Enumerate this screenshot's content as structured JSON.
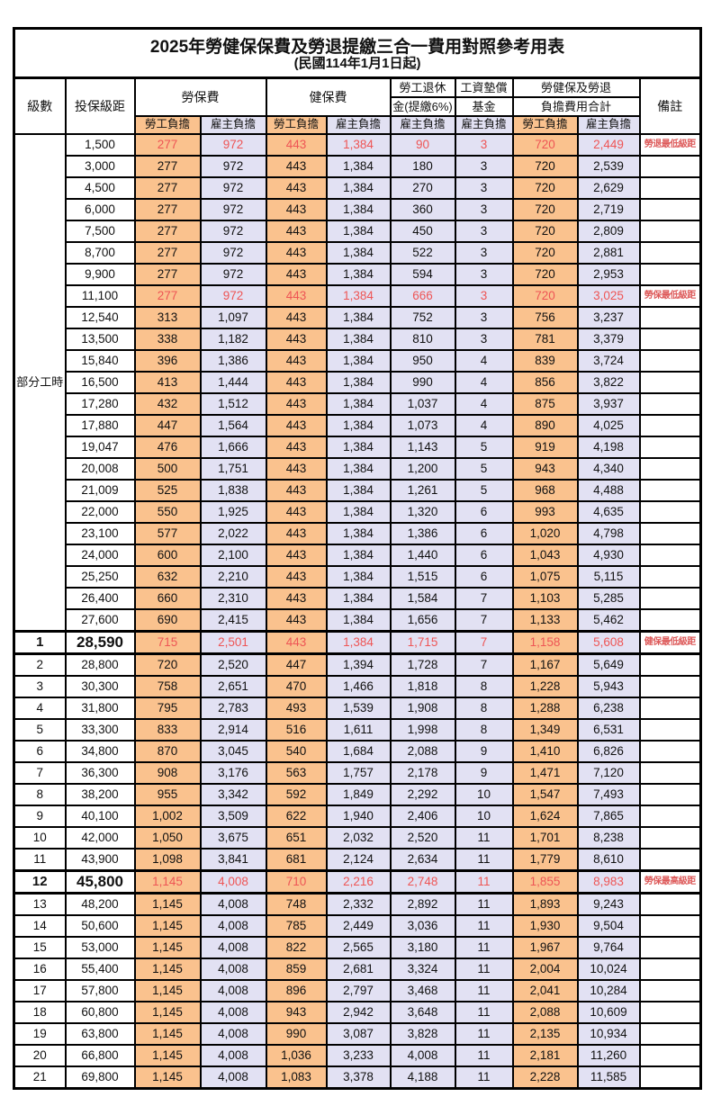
{
  "title": "2025年勞健保保費及勞退提繳三合一費用對照參考用表",
  "subtitle": "(民國114年1月1日起)",
  "header": {
    "level": "級數",
    "salary": "投保級距",
    "labor": "勞保費",
    "health": "健保費",
    "pension_line1": "勞工退休",
    "pension_line2": "金(提繳6%)",
    "wage_line1": "工資墊償",
    "wage_line2": "基金",
    "total_line1": "勞健保及勞退",
    "total_line2": "負擔費用合計",
    "note": "備註",
    "employee": "勞工負擔",
    "employer": "雇主負擔"
  },
  "part_time_label": "部分工時",
  "colors": {
    "employee_bg": "#FAC28E",
    "employer_bg": "#E2E1F3",
    "highlight_red": "#EE5555",
    "note_red": "#DD5A5A",
    "border": "#000000"
  },
  "columns": [
    "level",
    "salary",
    "labor_employee",
    "labor_employer",
    "health_employee",
    "health_employer",
    "pension_employer",
    "wage_fund_employer",
    "total_employee",
    "total_employer",
    "note",
    "style"
  ],
  "rows": [
    [
      "",
      "1,500",
      "277",
      "972",
      "443",
      "1,384",
      "90",
      "3",
      "720",
      "2,449",
      "勞退最低級距",
      "red"
    ],
    [
      "",
      "3,000",
      "277",
      "972",
      "443",
      "1,384",
      "180",
      "3",
      "720",
      "2,539",
      "",
      ""
    ],
    [
      "",
      "4,500",
      "277",
      "972",
      "443",
      "1,384",
      "270",
      "3",
      "720",
      "2,629",
      "",
      ""
    ],
    [
      "",
      "6,000",
      "277",
      "972",
      "443",
      "1,384",
      "360",
      "3",
      "720",
      "2,719",
      "",
      ""
    ],
    [
      "",
      "7,500",
      "277",
      "972",
      "443",
      "1,384",
      "450",
      "3",
      "720",
      "2,809",
      "",
      ""
    ],
    [
      "",
      "8,700",
      "277",
      "972",
      "443",
      "1,384",
      "522",
      "3",
      "720",
      "2,881",
      "",
      ""
    ],
    [
      "",
      "9,900",
      "277",
      "972",
      "443",
      "1,384",
      "594",
      "3",
      "720",
      "2,953",
      "",
      ""
    ],
    [
      "",
      "11,100",
      "277",
      "972",
      "443",
      "1,384",
      "666",
      "3",
      "720",
      "3,025",
      "勞保最低級距",
      "red"
    ],
    [
      "",
      "12,540",
      "313",
      "1,097",
      "443",
      "1,384",
      "752",
      "3",
      "756",
      "3,237",
      "",
      ""
    ],
    [
      "",
      "13,500",
      "338",
      "1,182",
      "443",
      "1,384",
      "810",
      "3",
      "781",
      "3,379",
      "",
      ""
    ],
    [
      "",
      "15,840",
      "396",
      "1,386",
      "443",
      "1,384",
      "950",
      "4",
      "839",
      "3,724",
      "",
      ""
    ],
    [
      "",
      "16,500",
      "413",
      "1,444",
      "443",
      "1,384",
      "990",
      "4",
      "856",
      "3,822",
      "",
      ""
    ],
    [
      "",
      "17,280",
      "432",
      "1,512",
      "443",
      "1,384",
      "1,037",
      "4",
      "875",
      "3,937",
      "",
      ""
    ],
    [
      "",
      "17,880",
      "447",
      "1,564",
      "443",
      "1,384",
      "1,073",
      "4",
      "890",
      "4,025",
      "",
      ""
    ],
    [
      "",
      "19,047",
      "476",
      "1,666",
      "443",
      "1,384",
      "1,143",
      "5",
      "919",
      "4,198",
      "",
      ""
    ],
    [
      "",
      "20,008",
      "500",
      "1,751",
      "443",
      "1,384",
      "1,200",
      "5",
      "943",
      "4,340",
      "",
      ""
    ],
    [
      "",
      "21,009",
      "525",
      "1,838",
      "443",
      "1,384",
      "1,261",
      "5",
      "968",
      "4,488",
      "",
      ""
    ],
    [
      "",
      "22,000",
      "550",
      "1,925",
      "443",
      "1,384",
      "1,320",
      "6",
      "993",
      "4,635",
      "",
      ""
    ],
    [
      "",
      "23,100",
      "577",
      "2,022",
      "443",
      "1,384",
      "1,386",
      "6",
      "1,020",
      "4,798",
      "",
      ""
    ],
    [
      "",
      "24,000",
      "600",
      "2,100",
      "443",
      "1,384",
      "1,440",
      "6",
      "1,043",
      "4,930",
      "",
      ""
    ],
    [
      "",
      "25,250",
      "632",
      "2,210",
      "443",
      "1,384",
      "1,515",
      "6",
      "1,075",
      "5,115",
      "",
      ""
    ],
    [
      "",
      "26,400",
      "660",
      "2,310",
      "443",
      "1,384",
      "1,584",
      "7",
      "1,103",
      "5,285",
      "",
      ""
    ],
    [
      "",
      "27,600",
      "690",
      "2,415",
      "443",
      "1,384",
      "1,656",
      "7",
      "1,133",
      "5,462",
      "",
      ""
    ],
    [
      "1",
      "28,590",
      "715",
      "2,501",
      "443",
      "1,384",
      "1,715",
      "7",
      "1,158",
      "5,608",
      "健保最低級距",
      "red bold"
    ],
    [
      "2",
      "28,800",
      "720",
      "2,520",
      "447",
      "1,394",
      "1,728",
      "7",
      "1,167",
      "5,649",
      "",
      ""
    ],
    [
      "3",
      "30,300",
      "758",
      "2,651",
      "470",
      "1,466",
      "1,818",
      "8",
      "1,228",
      "5,943",
      "",
      ""
    ],
    [
      "4",
      "31,800",
      "795",
      "2,783",
      "493",
      "1,539",
      "1,908",
      "8",
      "1,288",
      "6,238",
      "",
      ""
    ],
    [
      "5",
      "33,300",
      "833",
      "2,914",
      "516",
      "1,611",
      "1,998",
      "8",
      "1,349",
      "6,531",
      "",
      ""
    ],
    [
      "6",
      "34,800",
      "870",
      "3,045",
      "540",
      "1,684",
      "2,088",
      "9",
      "1,410",
      "6,826",
      "",
      ""
    ],
    [
      "7",
      "36,300",
      "908",
      "3,176",
      "563",
      "1,757",
      "2,178",
      "9",
      "1,471",
      "7,120",
      "",
      ""
    ],
    [
      "8",
      "38,200",
      "955",
      "3,342",
      "592",
      "1,849",
      "2,292",
      "10",
      "1,547",
      "7,493",
      "",
      ""
    ],
    [
      "9",
      "40,100",
      "1,002",
      "3,509",
      "622",
      "1,940",
      "2,406",
      "10",
      "1,624",
      "7,865",
      "",
      ""
    ],
    [
      "10",
      "42,000",
      "1,050",
      "3,675",
      "651",
      "2,032",
      "2,520",
      "11",
      "1,701",
      "8,238",
      "",
      ""
    ],
    [
      "11",
      "43,900",
      "1,098",
      "3,841",
      "681",
      "2,124",
      "2,634",
      "11",
      "1,779",
      "8,610",
      "",
      ""
    ],
    [
      "12",
      "45,800",
      "1,145",
      "4,008",
      "710",
      "2,216",
      "2,748",
      "11",
      "1,855",
      "8,983",
      "勞保最高級距",
      "red bold"
    ],
    [
      "13",
      "48,200",
      "1,145",
      "4,008",
      "748",
      "2,332",
      "2,892",
      "11",
      "1,893",
      "9,243",
      "",
      ""
    ],
    [
      "14",
      "50,600",
      "1,145",
      "4,008",
      "785",
      "2,449",
      "3,036",
      "11",
      "1,930",
      "9,504",
      "",
      ""
    ],
    [
      "15",
      "53,000",
      "1,145",
      "4,008",
      "822",
      "2,565",
      "3,180",
      "11",
      "1,967",
      "9,764",
      "",
      ""
    ],
    [
      "16",
      "55,400",
      "1,145",
      "4,008",
      "859",
      "2,681",
      "3,324",
      "11",
      "2,004",
      "10,024",
      "",
      ""
    ],
    [
      "17",
      "57,800",
      "1,145",
      "4,008",
      "896",
      "2,797",
      "3,468",
      "11",
      "2,041",
      "10,284",
      "",
      ""
    ],
    [
      "18",
      "60,800",
      "1,145",
      "4,008",
      "943",
      "2,942",
      "3,648",
      "11",
      "2,088",
      "10,609",
      "",
      ""
    ],
    [
      "19",
      "63,800",
      "1,145",
      "4,008",
      "990",
      "3,087",
      "3,828",
      "11",
      "2,135",
      "10,934",
      "",
      ""
    ],
    [
      "20",
      "66,800",
      "1,145",
      "4,008",
      "1,036",
      "3,233",
      "4,008",
      "11",
      "2,181",
      "11,260",
      "",
      ""
    ],
    [
      "21",
      "69,800",
      "1,145",
      "4,008",
      "1,083",
      "3,378",
      "4,188",
      "11",
      "2,228",
      "11,585",
      "",
      ""
    ]
  ]
}
